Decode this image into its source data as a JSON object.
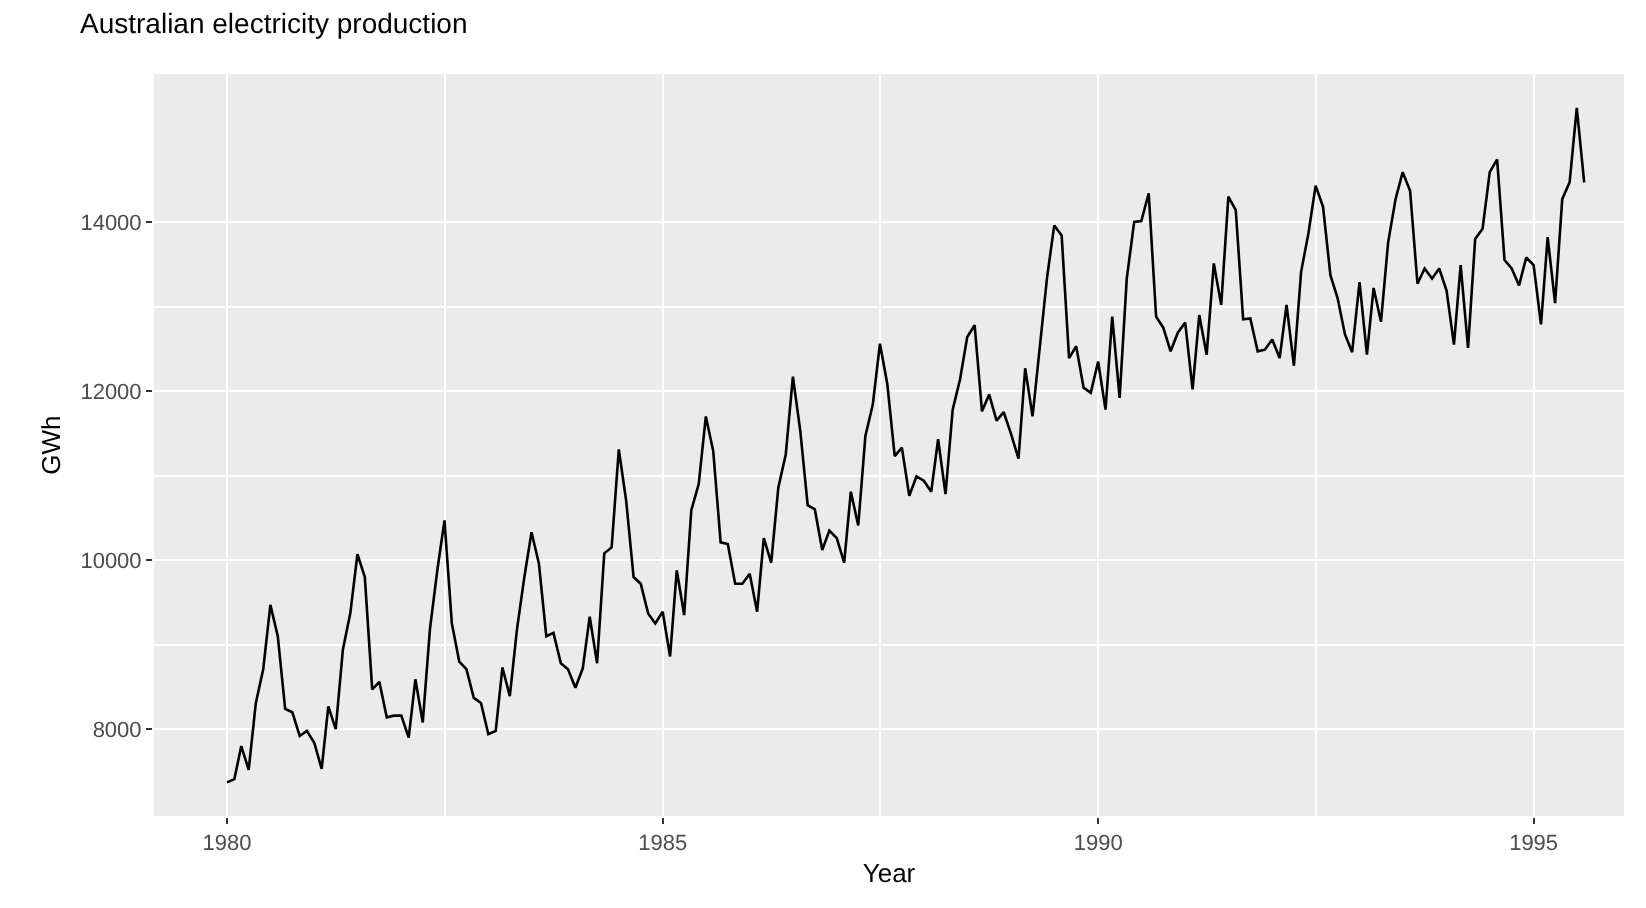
{
  "chart_data": {
    "type": "line",
    "title": "Australian electricity production",
    "xlabel": "Year",
    "ylabel": "GWh",
    "x": [
      "1980-01",
      "1980-02",
      "1980-03",
      "1980-04",
      "1980-05",
      "1980-06",
      "1980-07",
      "1980-08",
      "1980-09",
      "1980-10",
      "1980-11",
      "1980-12",
      "1981-01",
      "1981-02",
      "1981-03",
      "1981-04",
      "1981-05",
      "1981-06",
      "1981-07",
      "1981-08",
      "1981-09",
      "1981-10",
      "1981-11",
      "1981-12",
      "1982-01",
      "1982-02",
      "1982-03",
      "1982-04",
      "1982-05",
      "1982-06",
      "1982-07",
      "1982-08",
      "1982-09",
      "1982-10",
      "1982-11",
      "1982-12",
      "1983-01",
      "1983-02",
      "1983-03",
      "1983-04",
      "1983-05",
      "1983-06",
      "1983-07",
      "1983-08",
      "1983-09",
      "1983-10",
      "1983-11",
      "1983-12",
      "1984-01",
      "1984-02",
      "1984-03",
      "1984-04",
      "1984-05",
      "1984-06",
      "1984-07",
      "1984-08",
      "1984-09",
      "1984-10",
      "1984-11",
      "1984-12",
      "1985-01",
      "1985-02",
      "1985-03",
      "1985-04",
      "1985-05",
      "1985-06",
      "1985-07",
      "1985-08",
      "1985-09",
      "1985-10",
      "1985-11",
      "1985-12",
      "1986-01",
      "1986-02",
      "1986-03",
      "1986-04",
      "1986-05",
      "1986-06",
      "1986-07",
      "1986-08",
      "1986-09",
      "1986-10",
      "1986-11",
      "1986-12",
      "1987-01",
      "1987-02",
      "1987-03",
      "1987-04",
      "1987-05",
      "1987-06",
      "1987-07",
      "1987-08",
      "1987-09",
      "1987-10",
      "1987-11",
      "1987-12",
      "1988-01",
      "1988-02",
      "1988-03",
      "1988-04",
      "1988-05",
      "1988-06",
      "1988-07",
      "1988-08",
      "1988-09",
      "1988-10",
      "1988-11",
      "1988-12",
      "1989-01",
      "1989-02",
      "1989-03",
      "1989-04",
      "1989-05",
      "1989-06",
      "1989-07",
      "1989-08",
      "1989-09",
      "1989-10",
      "1989-11",
      "1989-12",
      "1990-01",
      "1990-02",
      "1990-03",
      "1990-04",
      "1990-05",
      "1990-06",
      "1990-07",
      "1990-08",
      "1990-09",
      "1990-10",
      "1990-11",
      "1990-12",
      "1991-01",
      "1991-02",
      "1991-03",
      "1991-04",
      "1991-05",
      "1991-06",
      "1991-07",
      "1991-08",
      "1991-09",
      "1991-10",
      "1991-11",
      "1991-12",
      "1992-01",
      "1992-02",
      "1992-03",
      "1992-04",
      "1992-05",
      "1992-06",
      "1992-07",
      "1992-08",
      "1992-09",
      "1992-10",
      "1992-11",
      "1992-12",
      "1993-01",
      "1993-02",
      "1993-03",
      "1993-04",
      "1993-05",
      "1993-06",
      "1993-07",
      "1993-08",
      "1993-09",
      "1993-10",
      "1993-11",
      "1993-12",
      "1994-01",
      "1994-02",
      "1994-03",
      "1994-04",
      "1994-05",
      "1994-06",
      "1994-07",
      "1994-08",
      "1994-09",
      "1994-10",
      "1994-11",
      "1994-12",
      "1995-01",
      "1995-02",
      "1995-03",
      "1995-04",
      "1995-05",
      "1995-06",
      "1995-07",
      "1995-08"
    ],
    "series": [
      {
        "color": "#000000",
        "values": [
          7370,
          7410,
          7800,
          7520,
          8310,
          8710,
          9470,
          9100,
          8240,
          8200,
          7920,
          7980,
          7840,
          7530,
          8270,
          8000,
          8940,
          9370,
          10070,
          9800,
          8470,
          8560,
          8140,
          8160,
          8160,
          7900,
          8590,
          8080,
          9180,
          9880,
          10470,
          9250,
          8800,
          8710,
          8370,
          8310,
          7940,
          7980,
          8730,
          8390,
          9180,
          9800,
          10330,
          9960,
          9100,
          9140,
          8780,
          8710,
          8490,
          8720,
          9330,
          8780,
          10080,
          10150,
          11310,
          10700,
          9800,
          9720,
          9370,
          9250,
          9390,
          8860,
          9880,
          9350,
          10590,
          10900,
          11700,
          11290,
          10210,
          10190,
          9720,
          9720,
          9840,
          9390,
          10260,
          9970,
          10860,
          11250,
          12170,
          11530,
          10650,
          10600,
          10120,
          10350,
          10260,
          9970,
          10810,
          10410,
          11470,
          11840,
          12560,
          12080,
          11230,
          11330,
          10760,
          10990,
          10940,
          10810,
          11430,
          10780,
          11780,
          12140,
          12640,
          12780,
          11760,
          11960,
          11650,
          11750,
          11490,
          11200,
          12270,
          11700,
          12510,
          13350,
          13960,
          13840,
          12390,
          12530,
          12040,
          11980,
          12350,
          11780,
          12880,
          11920,
          13330,
          14000,
          14010,
          14340,
          12880,
          12750,
          12470,
          12690,
          12810,
          12020,
          12900,
          12430,
          13510,
          13020,
          14300,
          14140,
          12850,
          12860,
          12470,
          12490,
          12610,
          12390,
          13020,
          12300,
          13410,
          13870,
          14430,
          14180,
          13370,
          13100,
          12670,
          12460,
          13290,
          12430,
          13220,
          12820,
          13760,
          14270,
          14590,
          14370,
          13270,
          13450,
          13330,
          13450,
          13190,
          12550,
          13490,
          12510,
          13800,
          13920,
          14590,
          14740,
          13550,
          13450,
          13250,
          13580,
          13490,
          12790,
          13820,
          13040,
          14270,
          14470,
          15350,
          14470
        ]
      }
    ],
    "xlim": [
      "1979-03-01",
      "1996-01-15"
    ],
    "xticks": [
      {
        "value": "1980-01-01",
        "label": "1980"
      },
      {
        "value": "1985-01-01",
        "label": "1985"
      },
      {
        "value": "1990-01-01",
        "label": "1990"
      },
      {
        "value": "1995-01-01",
        "label": "1995"
      }
    ],
    "ylim": [
      6973,
      15751
    ],
    "yticks": [
      8000,
      10000,
      12000,
      14000
    ],
    "grid": true,
    "marker": "none",
    "line_style": "solid"
  }
}
